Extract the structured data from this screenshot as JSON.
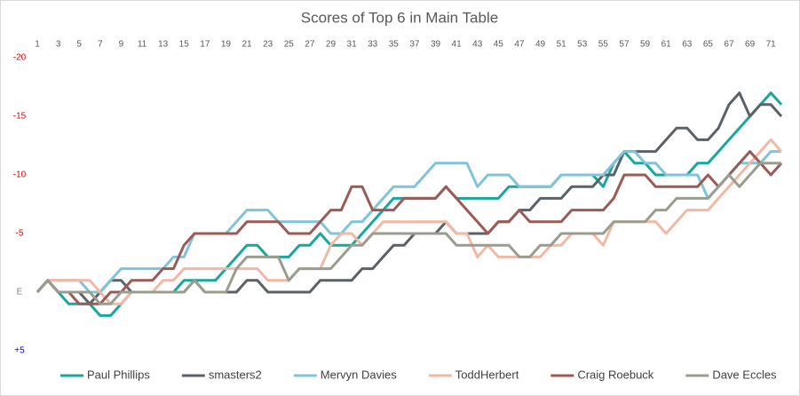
{
  "chart_data": {
    "type": "line",
    "title": "Scores of Top 6 in Main Table",
    "x": [
      1,
      2,
      3,
      4,
      5,
      6,
      7,
      8,
      9,
      10,
      11,
      12,
      13,
      14,
      15,
      16,
      17,
      18,
      19,
      20,
      21,
      22,
      23,
      24,
      25,
      26,
      27,
      28,
      29,
      30,
      31,
      32,
      33,
      34,
      35,
      36,
      37,
      38,
      39,
      40,
      41,
      42,
      43,
      44,
      45,
      46,
      47,
      48,
      49,
      50,
      51,
      52,
      53,
      54,
      55,
      56,
      57,
      58,
      59,
      60,
      61,
      62,
      63,
      64,
      65,
      66,
      67,
      68,
      69,
      70,
      71,
      72
    ],
    "xlim": [
      1,
      72
    ],
    "xticks": [
      1,
      3,
      5,
      7,
      9,
      11,
      13,
      15,
      17,
      19,
      21,
      23,
      25,
      27,
      29,
      31,
      33,
      35,
      37,
      39,
      41,
      43,
      45,
      47,
      49,
      51,
      53,
      55,
      57,
      59,
      61,
      63,
      65,
      67,
      69,
      71
    ],
    "ylim": [
      5,
      -20
    ],
    "yticks": [
      -20,
      -15,
      -10,
      -5,
      {
        "value": 0,
        "label": "E"
      },
      {
        "value": 5,
        "label": "+5"
      }
    ],
    "grid": false,
    "legend": "bottom",
    "series": [
      {
        "name": "Paul Phillips",
        "color": "#17a89b",
        "values": [
          0,
          -1,
          0,
          1,
          1,
          1,
          2,
          2,
          1,
          0,
          0,
          0,
          0,
          0,
          -1,
          -1,
          -1,
          -1,
          -2,
          -3,
          -4,
          -4,
          -3,
          -3,
          -3,
          -4,
          -4,
          -5,
          -4,
          -4,
          -4,
          -5,
          -6,
          -7,
          -8,
          -8,
          -8,
          -8,
          -8,
          -9,
          -8,
          -8,
          -8,
          -8,
          -8,
          -9,
          -9,
          -9,
          -9,
          -9,
          -10,
          -10,
          -10,
          -10,
          -9,
          -11,
          -12,
          -11,
          -11,
          -10,
          -10,
          -10,
          -10,
          -11,
          -11,
          -12,
          -13,
          -14,
          -15,
          -16,
          -17,
          -16
        ]
      },
      {
        "name": "smasters2",
        "color": "#5a6268",
        "values": [
          0,
          -1,
          0,
          0,
          0,
          1,
          0,
          -1,
          -1,
          0,
          0,
          0,
          0,
          0,
          0,
          -1,
          0,
          0,
          0,
          0,
          -1,
          -1,
          0,
          0,
          0,
          0,
          0,
          -1,
          -1,
          -1,
          -1,
          -2,
          -2,
          -3,
          -4,
          -4,
          -5,
          -5,
          -5,
          -6,
          -5,
          -5,
          -5,
          -5,
          -6,
          -6,
          -7,
          -7,
          -8,
          -8,
          -8,
          -9,
          -9,
          -9,
          -10,
          -10,
          -12,
          -12,
          -12,
          -12,
          -13,
          -14,
          -14,
          -13,
          -13,
          -14,
          -16,
          -17,
          -15,
          -16,
          -16,
          -15
        ]
      },
      {
        "name": "Mervyn Davies",
        "color": "#7fc4d9",
        "values": [
          0,
          -1,
          -1,
          -1,
          -1,
          0,
          0,
          -1,
          -2,
          -2,
          -2,
          -2,
          -2,
          -3,
          -3,
          -5,
          -5,
          -5,
          -5,
          -6,
          -7,
          -7,
          -7,
          -6,
          -6,
          -6,
          -6,
          -6,
          -5,
          -5,
          -6,
          -6,
          -7,
          -8,
          -9,
          -9,
          -9,
          -10,
          -11,
          -11,
          -11,
          -11,
          -9,
          -10,
          -10,
          -10,
          -9,
          -9,
          -9,
          -9,
          -10,
          -10,
          -10,
          -10,
          -10,
          -11,
          -12,
          -12,
          -11,
          -11,
          -10,
          -10,
          -10,
          -10,
          -8,
          -9,
          -10,
          -11,
          -11,
          -11,
          -12,
          -12
        ]
      },
      {
        "name": "ToddHerbert",
        "color": "#f2b8a6",
        "values": [
          0,
          -1,
          -1,
          -1,
          -1,
          -1,
          0,
          1,
          1,
          0,
          0,
          0,
          -1,
          -1,
          -2,
          -2,
          -2,
          -2,
          -2,
          -2,
          -2,
          -2,
          -1,
          -1,
          -1,
          -2,
          -2,
          -2,
          -4,
          -5,
          -5,
          -4,
          -5,
          -6,
          -6,
          -6,
          -6,
          -6,
          -6,
          -6,
          -5,
          -5,
          -3,
          -4,
          -3,
          -3,
          -3,
          -3,
          -3,
          -4,
          -4,
          -5,
          -5,
          -5,
          -4,
          -6,
          -6,
          -6,
          -6,
          -6,
          -5,
          -6,
          -7,
          -7,
          -7,
          -8,
          -9,
          -10,
          -11,
          -12,
          -13,
          -12
        ]
      },
      {
        "name": "Craig Roebuck",
        "color": "#9b5a56",
        "values": [
          0,
          -1,
          0,
          0,
          1,
          1,
          1,
          0,
          0,
          -1,
          -1,
          -1,
          -2,
          -2,
          -4,
          -5,
          -5,
          -5,
          -5,
          -5,
          -6,
          -6,
          -6,
          -6,
          -5,
          -5,
          -5,
          -6,
          -7,
          -7,
          -9,
          -9,
          -7,
          -7,
          -7,
          -8,
          -8,
          -8,
          -8,
          -9,
          -8,
          -7,
          -6,
          -5,
          -6,
          -6,
          -7,
          -6,
          -6,
          -6,
          -6,
          -7,
          -7,
          -7,
          -7,
          -8,
          -10,
          -10,
          -10,
          -9,
          -9,
          -9,
          -9,
          -9,
          -10,
          -9,
          -10,
          -11,
          -12,
          -11,
          -10,
          -11
        ]
      },
      {
        "name": "Dave Eccles",
        "color": "#9a9d8e",
        "values": [
          0,
          -1,
          0,
          0,
          0,
          0,
          1,
          1,
          0,
          0,
          0,
          0,
          0,
          0,
          0,
          -1,
          0,
          0,
          0,
          -2,
          -3,
          -3,
          -3,
          -3,
          -1,
          -2,
          -2,
          -2,
          -2,
          -3,
          -4,
          -4,
          -5,
          -5,
          -5,
          -5,
          -5,
          -5,
          -5,
          -5,
          -4,
          -4,
          -4,
          -4,
          -4,
          -4,
          -3,
          -3,
          -4,
          -4,
          -5,
          -5,
          -5,
          -5,
          -5,
          -6,
          -6,
          -6,
          -6,
          -7,
          -7,
          -8,
          -8,
          -8,
          -8,
          -9,
          -10,
          -9,
          -10,
          -11,
          -11,
          -11
        ]
      }
    ]
  }
}
